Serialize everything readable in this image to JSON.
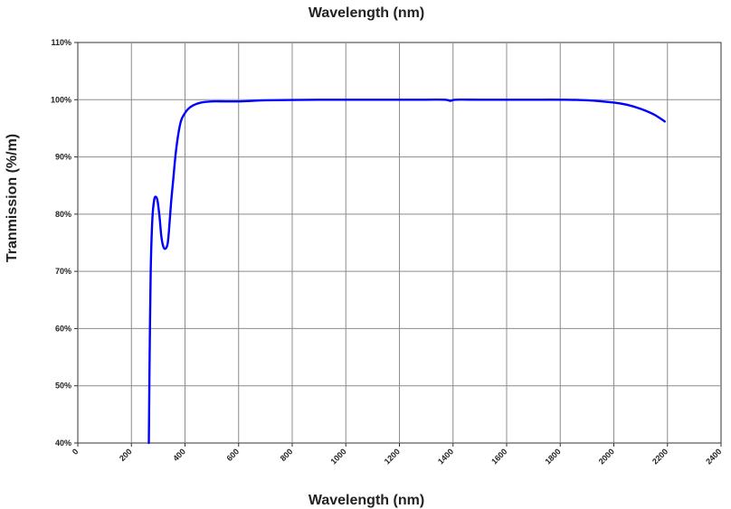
{
  "chart_data": {
    "type": "line",
    "title": "Wavelength (nm)",
    "xlabel": "Wavelength (nm)",
    "ylabel": "Tranmission (%/m)",
    "xlim": [
      0,
      2400
    ],
    "ylim": [
      40,
      110
    ],
    "x_ticks": [
      0,
      200,
      400,
      600,
      800,
      1000,
      1200,
      1400,
      1600,
      1800,
      2000,
      2200,
      2400
    ],
    "x_tick_labels": [
      "0",
      "200",
      "400",
      "600",
      "800",
      "1000",
      "1200",
      "1400",
      "1600",
      "1800",
      "2000",
      "2200",
      "2400"
    ],
    "y_ticks": [
      40,
      50,
      60,
      70,
      80,
      90,
      100,
      110
    ],
    "y_tick_labels": [
      "40%",
      "50%",
      "60%",
      "70%",
      "80%",
      "90%",
      "100%",
      "110%"
    ],
    "grid": true,
    "color": "#0000ff",
    "series": [
      {
        "x": [
          265,
          268,
          272,
          278,
          285,
          292,
          298,
          305,
          312,
          320,
          328,
          335,
          340,
          348,
          356,
          365,
          375,
          385,
          395,
          410,
          430,
          460,
          500,
          550,
          600,
          650,
          700,
          800,
          900,
          1000,
          1100,
          1200,
          1300,
          1370,
          1390,
          1410,
          1500,
          1600,
          1700,
          1800,
          1900,
          2000,
          2050,
          2100,
          2150,
          2190
        ],
        "y": [
          40,
          55,
          70,
          79,
          82.5,
          83,
          82.2,
          79.5,
          76,
          74.2,
          74,
          74.8,
          77,
          82,
          86,
          90.5,
          94,
          96.3,
          97.3,
          98.3,
          99,
          99.5,
          99.7,
          99.7,
          99.7,
          99.8,
          99.9,
          99.95,
          100,
          100,
          100,
          100,
          100,
          100,
          99.8,
          100,
          100,
          100,
          100,
          100,
          99.9,
          99.5,
          99.1,
          98.4,
          97.4,
          96.2
        ]
      }
    ]
  }
}
